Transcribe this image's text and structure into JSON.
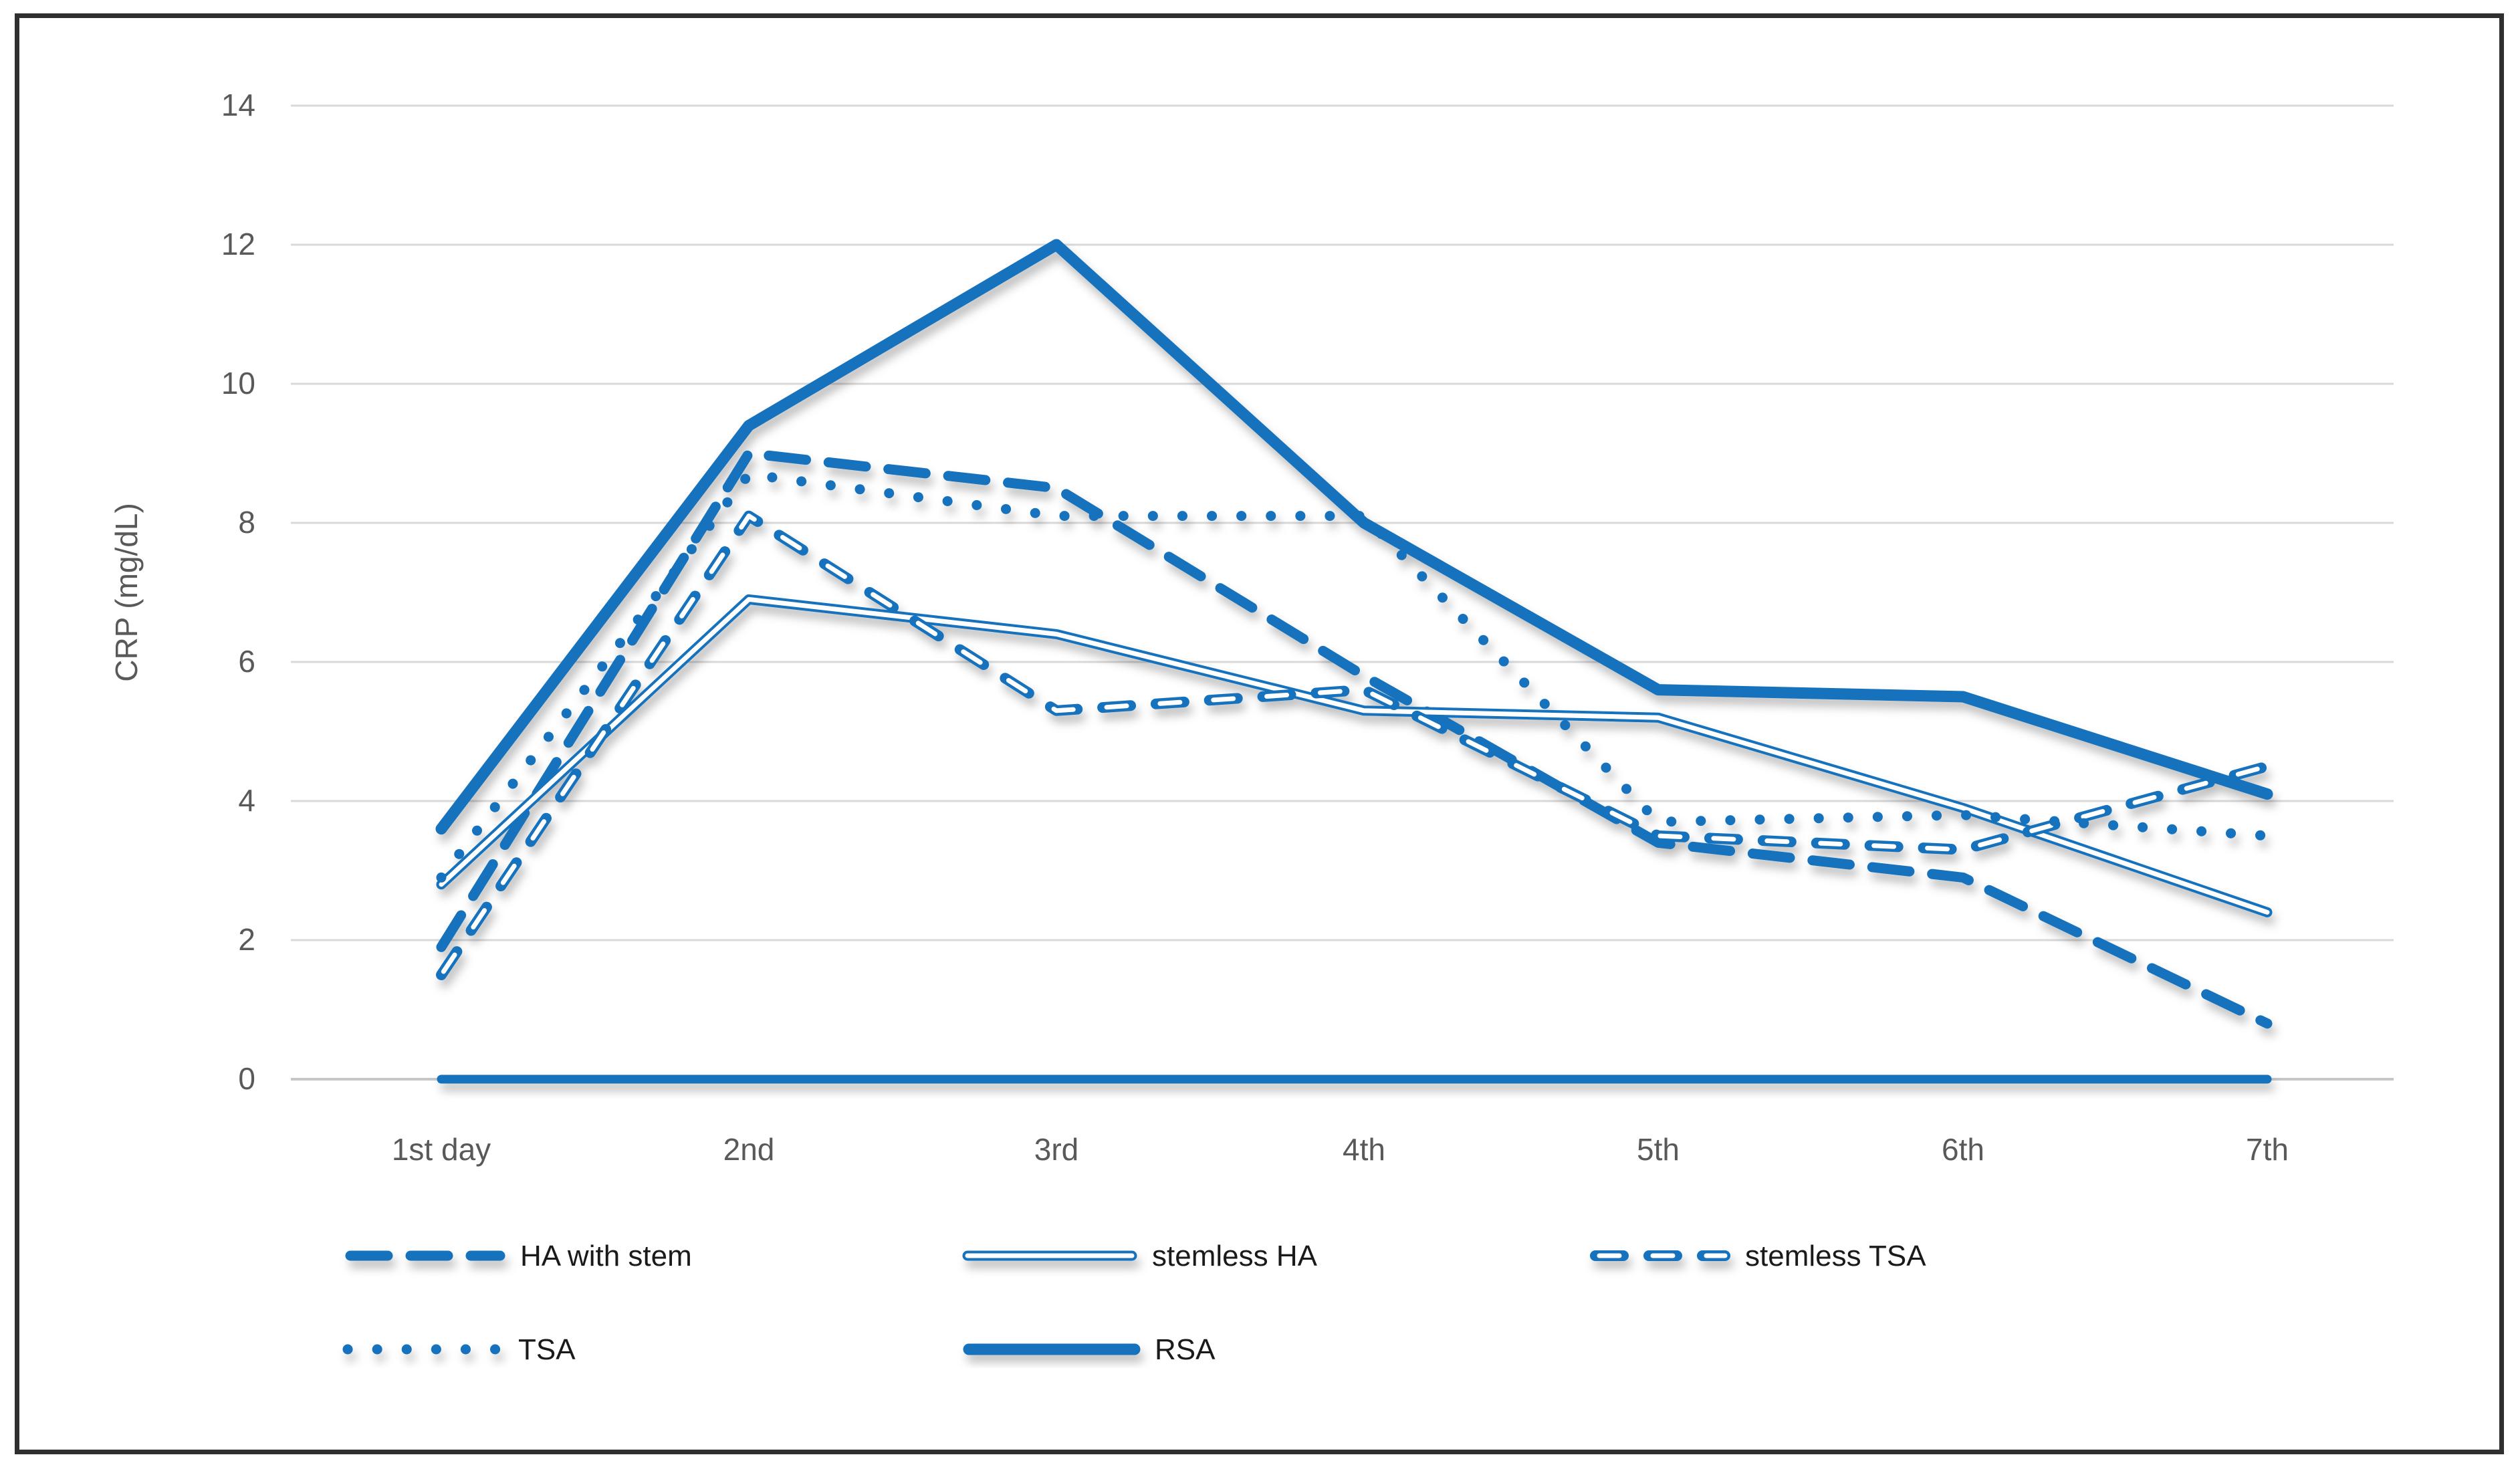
{
  "figure": {
    "background": "#ffffff",
    "border_color": "#2f2f2f"
  },
  "chart_data": {
    "type": "line",
    "title": "",
    "xlabel": "",
    "ylabel": "CRP (mg/dL)",
    "categories": [
      "1st day",
      "2nd",
      "3rd",
      "4th",
      "5th",
      "6th",
      "7th"
    ],
    "ylim": [
      0,
      14
    ],
    "ytick_step": 2,
    "yticks": [
      0,
      2,
      4,
      6,
      8,
      10,
      12,
      14
    ],
    "grid": "horizontal-only",
    "legend_position": "bottom",
    "accent_color": "#1272BC",
    "grid_color": "#D9D9D9",
    "axis_line_color": "#C6C6C6",
    "tick_label_color": "#595959",
    "legend_text_color": "#1a1a1a",
    "baseline_zero_line": true,
    "series": [
      {
        "name": "HA with stem",
        "style": "thick-dashed",
        "values": [
          1.9,
          9.0,
          8.5,
          5.8,
          3.4,
          2.9,
          0.8
        ]
      },
      {
        "name": "stemless HA",
        "style": "hollow-solid",
        "values": [
          2.8,
          6.9,
          6.4,
          5.3,
          5.2,
          3.9,
          2.4
        ]
      },
      {
        "name": "stemless TSA",
        "style": "hollow-dashed",
        "values": [
          1.5,
          8.1,
          5.3,
          5.6,
          3.5,
          3.3,
          4.5
        ]
      },
      {
        "name": "TSA",
        "style": "dotted",
        "values": [
          2.9,
          8.7,
          8.1,
          8.1,
          3.7,
          3.8,
          3.5
        ]
      },
      {
        "name": "RSA",
        "style": "thick-solid",
        "values": [
          3.6,
          9.4,
          12.0,
          8.0,
          5.6,
          5.5,
          4.1
        ]
      }
    ]
  }
}
